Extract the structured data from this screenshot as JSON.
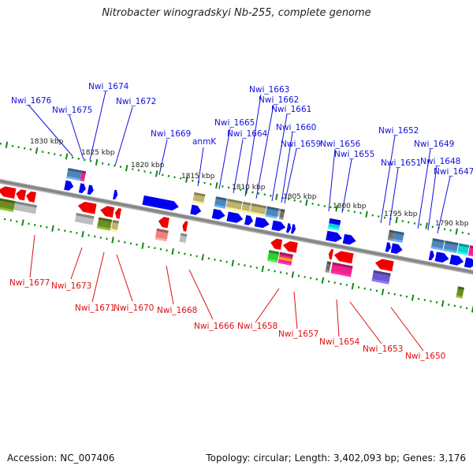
{
  "title": "Nitrobacter winogradskyi Nb-255, complete genome",
  "footer": {
    "accession": "Accession: NC_007406",
    "summary": "Topology: circular; Length: 3,402,093 bp; Genes: 3,176"
  },
  "colors": {
    "forward_label": "#1010dd",
    "reverse_label": "#dd1010",
    "forward_cds": "#0000ee",
    "reverse_cds": "#ee0000",
    "backbone": "#808080",
    "ticks": "#118811"
  },
  "axis": {
    "direction": "decreasing left-to-right",
    "tick_labels": [
      "1830 kbp",
      "1825 kbp",
      "1820 kbp",
      "1815 kbp",
      "1810 kbp",
      "1805 kbp",
      "1800 kbp",
      "1795 kbp",
      "1790 kbp"
    ]
  },
  "forward_labels": [
    "Nwi_1676",
    "Nwi_1675",
    "Nwi_1674",
    "Nwi_1672",
    "Nwi_1669",
    "anmK",
    "Nwi_1665",
    "Nwi_1664",
    "Nwi_1663",
    "Nwi_1662",
    "Nwi_1661",
    "Nwi_1660",
    "Nwi_1659",
    "Nwi_1656",
    "Nwi_1655",
    "Nwi_1652",
    "Nwi_1651",
    "Nwi_1649",
    "Nwi_1648",
    "Nwi_1647"
  ],
  "reverse_labels": [
    "Nwi_1677",
    "Nwi_1673",
    "Nwi_1671",
    "Nwi_1670",
    "Nwi_1668",
    "Nwi_1666",
    "Nwi_1658",
    "Nwi_1657",
    "Nwi_1654",
    "Nwi_1653",
    "Nwi_1650"
  ],
  "feature_colors": {
    "steelblue": "#4f86b8",
    "magenta": "#ee2288",
    "khaki": "#bdb472",
    "olive": "#6b8e23",
    "silver": "#bdbdbd",
    "gray": "#707070",
    "cyan": "#10d0d0",
    "lightred": "#ee8080",
    "green": "#33cc33",
    "orange": "#ff9922",
    "slateblue": "#6a5acd"
  }
}
